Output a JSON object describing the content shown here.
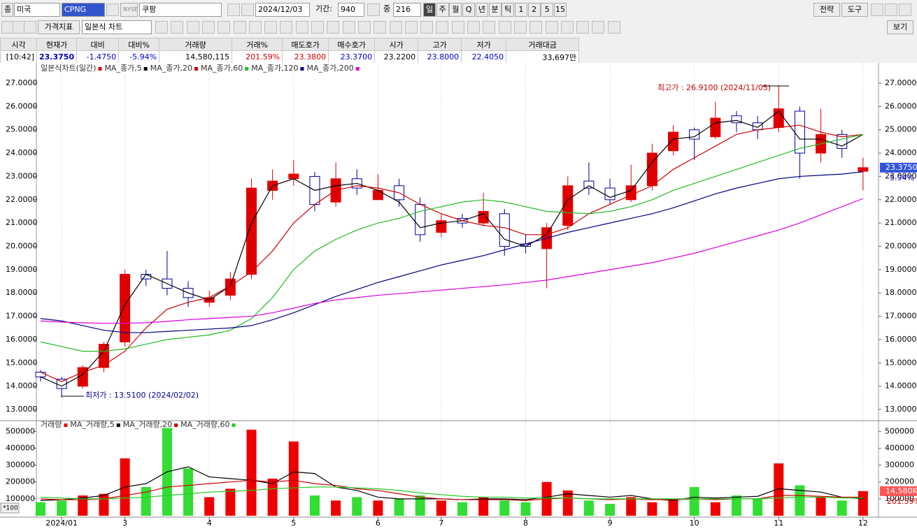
{
  "toolbar": {
    "market_label": "종",
    "market": "미국",
    "symbol": "CPNG",
    "exchange": "NYSE",
    "name": "쿠팡",
    "date": "2024/12/03",
    "period_label": "기간:",
    "period": "940",
    "count_label": "중",
    "count": "216",
    "intervals": [
      "일",
      "주",
      "월",
      "Q",
      "년",
      "분",
      "틱",
      "1",
      "2",
      "5",
      "15"
    ],
    "right_buttons": [
      "전략",
      "도구"
    ],
    "indicator_button": "가격지표",
    "chart_type": "일본식 차트",
    "view_button": "보기"
  },
  "quote": {
    "headers": [
      "시각",
      "현재가",
      "대비",
      "대비%",
      "거래량",
      "거래%",
      "매도호가",
      "매수호가",
      "시가",
      "고가",
      "저가",
      "거래대금"
    ],
    "values": [
      "[10:42]",
      "23.3750",
      "-1.4750",
      "-5.94%",
      "14,580,115",
      "201.59%",
      "23.3800",
      "23.3700",
      "23.2200",
      "23.8000",
      "22.4050",
      "33,697만"
    ]
  },
  "chart_data": [
    {
      "type": "candlestick",
      "ylim": [
        12.55,
        27.66
      ],
      "yticks": [
        {
          "value": 13,
          "label": "13.0000"
        },
        {
          "value": 14,
          "label": "14.0000"
        },
        {
          "value": 15,
          "label": "15.0000"
        },
        {
          "value": 16,
          "label": "16.0000"
        },
        {
          "value": 17,
          "label": "17.0000"
        },
        {
          "value": 18,
          "label": "18.0000"
        },
        {
          "value": 19,
          "label": "19.0000"
        },
        {
          "value": 20,
          "label": "20.0000"
        },
        {
          "value": 21,
          "label": "21.0000"
        },
        {
          "value": 22,
          "label": "22.0000"
        },
        {
          "value": 23,
          "label": "23.0000"
        },
        {
          "value": 24,
          "label": "24.0000"
        },
        {
          "value": 25,
          "label": "25.0000"
        },
        {
          "value": 26,
          "label": "26.0000"
        },
        {
          "value": 27,
          "label": "27.0000"
        }
      ],
      "candles": {
        "name": "일본식차트(일간)",
        "up_color": "#e00000",
        "down_color": "#000099",
        "open": [
          14.6,
          14.3,
          14.0,
          14.8,
          15.9,
          18.8,
          18.6,
          18.2,
          17.6,
          17.9,
          18.8,
          22.4,
          22.9,
          23.0,
          21.9,
          22.9,
          22.0,
          22.6,
          21.8,
          20.6,
          21.2,
          21.0,
          21.4,
          20.1,
          19.9,
          20.9,
          22.8,
          22.5,
          22.0,
          22.6,
          24.1,
          25.0,
          24.7,
          25.6,
          25.3,
          25.1,
          25.8,
          24.0,
          24.8,
          23.22
        ],
        "high": [
          14.7,
          14.4,
          14.9,
          15.9,
          19.0,
          19.0,
          19.8,
          18.5,
          18.1,
          18.9,
          22.9,
          23.3,
          23.7,
          23.2,
          23.6,
          23.3,
          23.1,
          22.9,
          22.1,
          21.4,
          21.4,
          22.3,
          21.6,
          20.5,
          21.0,
          23.0,
          23.6,
          22.9,
          23.5,
          24.4,
          25.2,
          25.1,
          26.2,
          25.8,
          25.6,
          26.91,
          26.0,
          25.9,
          25.0,
          23.8
        ],
        "low": [
          14.2,
          13.51,
          13.9,
          14.6,
          15.7,
          18.3,
          17.9,
          17.4,
          17.4,
          17.7,
          18.6,
          22.0,
          22.6,
          21.5,
          21.7,
          22.2,
          22.0,
          21.7,
          20.2,
          20.4,
          20.8,
          20.9,
          19.6,
          19.7,
          18.2,
          20.7,
          22.2,
          21.8,
          21.9,
          22.4,
          23.9,
          23.7,
          24.6,
          24.9,
          24.6,
          24.9,
          22.9,
          23.6,
          23.8,
          22.405
        ],
        "close": [
          14.4,
          13.9,
          14.8,
          15.8,
          18.8,
          18.6,
          18.2,
          17.8,
          17.8,
          18.6,
          22.5,
          22.8,
          23.1,
          21.8,
          22.9,
          22.5,
          22.4,
          22.0,
          20.5,
          21.1,
          21.0,
          21.5,
          20.0,
          20.0,
          20.8,
          22.6,
          22.5,
          22.0,
          22.6,
          24.0,
          24.9,
          24.6,
          25.5,
          25.3,
          25.0,
          25.9,
          24.0,
          24.8,
          24.2,
          23.375
        ]
      },
      "series": [
        {
          "name": "MA_종가,5",
          "color": "#000000",
          "values": [
            14.4,
            14.0,
            14.5,
            15.5,
            17.5,
            18.8,
            18.4,
            18.0,
            17.7,
            18.3,
            21.0,
            22.6,
            22.9,
            22.4,
            22.6,
            22.7,
            22.4,
            21.9,
            20.8,
            21.0,
            21.1,
            21.4,
            20.3,
            20.0,
            20.5,
            22.0,
            22.6,
            22.1,
            22.4,
            23.6,
            24.6,
            24.7,
            25.3,
            25.4,
            25.1,
            25.8,
            24.6,
            24.6,
            24.3,
            24.8
          ]
        },
        {
          "name": "MA_종가,20",
          "color": "#cc0000",
          "values": [
            14.6,
            14.2,
            14.6,
            14.9,
            15.5,
            16.5,
            17.3,
            17.6,
            17.8,
            18.3,
            18.9,
            19.8,
            21.0,
            21.8,
            22.4,
            22.6,
            22.5,
            22.3,
            21.8,
            21.4,
            21.1,
            20.9,
            20.8,
            20.5,
            20.5,
            20.8,
            21.4,
            21.8,
            22.2,
            22.6,
            23.3,
            23.8,
            24.3,
            24.8,
            25.0,
            25.1,
            25.2,
            24.9,
            24.7,
            24.8
          ]
        },
        {
          "name": "MA_종가,60",
          "color": "#22bb22",
          "values": [
            15.9,
            15.7,
            15.5,
            15.5,
            15.6,
            15.8,
            16.0,
            16.1,
            16.2,
            16.4,
            16.9,
            17.8,
            19.0,
            19.8,
            20.3,
            20.7,
            21.0,
            21.2,
            21.5,
            21.7,
            21.9,
            22.0,
            21.9,
            21.7,
            21.5,
            21.45,
            21.4,
            21.5,
            21.7,
            22.0,
            22.4,
            22.7,
            23.0,
            23.3,
            23.6,
            23.9,
            24.2,
            24.4,
            24.6,
            24.8
          ]
        },
        {
          "name": "MA_종가,120",
          "color": "#000080",
          "values": [
            16.9,
            16.8,
            16.6,
            16.4,
            16.3,
            16.3,
            16.35,
            16.4,
            16.45,
            16.5,
            16.6,
            16.85,
            17.15,
            17.5,
            17.85,
            18.15,
            18.45,
            18.7,
            18.95,
            19.2,
            19.4,
            19.6,
            19.85,
            20.1,
            20.35,
            20.6,
            20.8,
            21.0,
            21.2,
            21.4,
            21.65,
            21.95,
            22.25,
            22.5,
            22.7,
            22.9,
            23.0,
            23.05,
            23.1,
            23.2
          ]
        },
        {
          "name": "MA_종가,200",
          "color": "#dd00dd",
          "values": [
            16.8,
            16.75,
            16.72,
            16.7,
            16.7,
            16.72,
            16.78,
            16.85,
            16.9,
            16.95,
            17.0,
            17.15,
            17.35,
            17.55,
            17.7,
            17.8,
            17.9,
            17.97,
            18.05,
            18.12,
            18.2,
            18.27,
            18.35,
            18.45,
            18.55,
            18.7,
            18.85,
            19.0,
            19.15,
            19.3,
            19.5,
            19.7,
            19.95,
            20.2,
            20.45,
            20.7,
            21.0,
            21.35,
            21.7,
            22.05
          ]
        }
      ],
      "last_price": {
        "value": 23.375,
        "label": "23.3750"
      },
      "last_change": "-5.94%",
      "annotations": [
        "최고가 : 26.9100 (2024/11/05)",
        "최저가 : 13.5100 (2024/02/02)"
      ]
    },
    {
      "type": "bar",
      "ylim": [
        0,
        555000
      ],
      "yticks": [
        100000,
        200000,
        300000,
        400000,
        500000
      ],
      "categories": [
        null,
        "2024/01",
        null,
        null,
        "3",
        null,
        null,
        null,
        "4",
        null,
        null,
        null,
        "5",
        null,
        null,
        null,
        "6",
        null,
        null,
        "7",
        null,
        null,
        null,
        "8",
        null,
        null,
        null,
        "9",
        null,
        null,
        null,
        "10",
        null,
        null,
        null,
        "11",
        null,
        null,
        null,
        "12"
      ],
      "series": [
        {
          "name": "거래량",
          "up_color": "#ee0000",
          "down_color": "#33dd33",
          "values": [
            80000,
            90000,
            120000,
            130000,
            340000,
            170000,
            520000,
            280000,
            110000,
            160000,
            510000,
            220000,
            440000,
            120000,
            90000,
            110000,
            90000,
            100000,
            120000,
            90000,
            80000,
            110000,
            90000,
            80000,
            200000,
            150000,
            90000,
            70000,
            110000,
            80000,
            100000,
            170000,
            80000,
            120000,
            100000,
            310000,
            180000,
            110000,
            90000,
            145800
          ]
        },
        {
          "name": "MA_거래량,5",
          "color": "#000000",
          "values": [
            90000,
            95000,
            105000,
            120000,
            170000,
            190000,
            260000,
            290000,
            230000,
            220000,
            210000,
            190000,
            260000,
            250000,
            170000,
            150000,
            110000,
            100000,
            100000,
            100000,
            95000,
            100000,
            100000,
            95000,
            110000,
            130000,
            120000,
            110000,
            120000,
            100000,
            90000,
            110000,
            105000,
            110000,
            115000,
            160000,
            150000,
            140000,
            110000,
            100000
          ]
        },
        {
          "name": "MA_거래량,20",
          "color": "#cc0000",
          "values": [
            100000,
            95000,
            95000,
            100000,
            120000,
            140000,
            170000,
            180000,
            190000,
            200000,
            210000,
            200000,
            210000,
            190000,
            180000,
            160000,
            150000,
            130000,
            110000,
            100000,
            95000,
            95000,
            95000,
            90000,
            100000,
            105000,
            100000,
            95000,
            100000,
            95000,
            95000,
            100000,
            95000,
            100000,
            100000,
            120000,
            120000,
            115000,
            110000,
            110000
          ]
        },
        {
          "name": "MA_거래량,60",
          "color": "#22cc22",
          "values": [
            110000,
            105000,
            100000,
            100000,
            105000,
            110000,
            120000,
            130000,
            140000,
            145000,
            150000,
            160000,
            165000,
            170000,
            170000,
            165000,
            160000,
            150000,
            135000,
            125000,
            115000,
            110000,
            110000,
            105000,
            105000,
            105000,
            100000,
            100000,
            100000,
            100000,
            100000,
            100000,
            100000,
            100000,
            100000,
            105000,
            110000,
            110000,
            105000,
            105000
          ]
        }
      ],
      "last_volume_label": "14,580K",
      "last_ratio_label": "201.59%",
      "unit_button": "*100"
    }
  ]
}
